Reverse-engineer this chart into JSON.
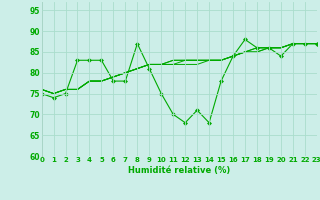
{
  "xlabel": "Humidité relative (%)",
  "xlim": [
    0,
    23
  ],
  "ylim": [
    60,
    97
  ],
  "yticks": [
    60,
    65,
    70,
    75,
    80,
    85,
    90,
    95
  ],
  "bg_color": "#cceee8",
  "grid_color": "#aaddcc",
  "line_color": "#00aa00",
  "lines": [
    [
      75,
      74,
      75,
      83,
      83,
      83,
      78,
      78,
      87,
      81,
      75,
      70,
      68,
      71,
      68,
      78,
      84,
      88,
      86,
      86,
      84,
      87,
      87,
      87
    ],
    [
      76,
      75,
      76,
      76,
      78,
      78,
      79,
      80,
      81,
      82,
      82,
      82,
      82,
      82,
      83,
      83,
      84,
      85,
      86,
      86,
      86,
      87,
      87,
      87
    ],
    [
      76,
      75,
      76,
      76,
      78,
      78,
      79,
      80,
      81,
      82,
      82,
      83,
      83,
      83,
      83,
      83,
      84,
      85,
      85,
      86,
      86,
      87,
      87,
      87
    ],
    [
      76,
      75,
      76,
      76,
      78,
      78,
      79,
      80,
      81,
      82,
      82,
      83,
      83,
      83,
      83,
      83,
      84,
      85,
      86,
      86,
      86,
      87,
      87,
      87
    ],
    [
      76,
      75,
      76,
      76,
      78,
      78,
      79,
      80,
      81,
      82,
      82,
      82,
      83,
      83,
      83,
      83,
      84,
      85,
      85,
      86,
      86,
      87,
      87,
      87
    ]
  ],
  "marker_line_index": 0,
  "marker": "D",
  "marker_size": 2.0,
  "xlabel_fontsize": 6.0,
  "xtick_fontsize": 5.0,
  "ytick_fontsize": 5.5
}
